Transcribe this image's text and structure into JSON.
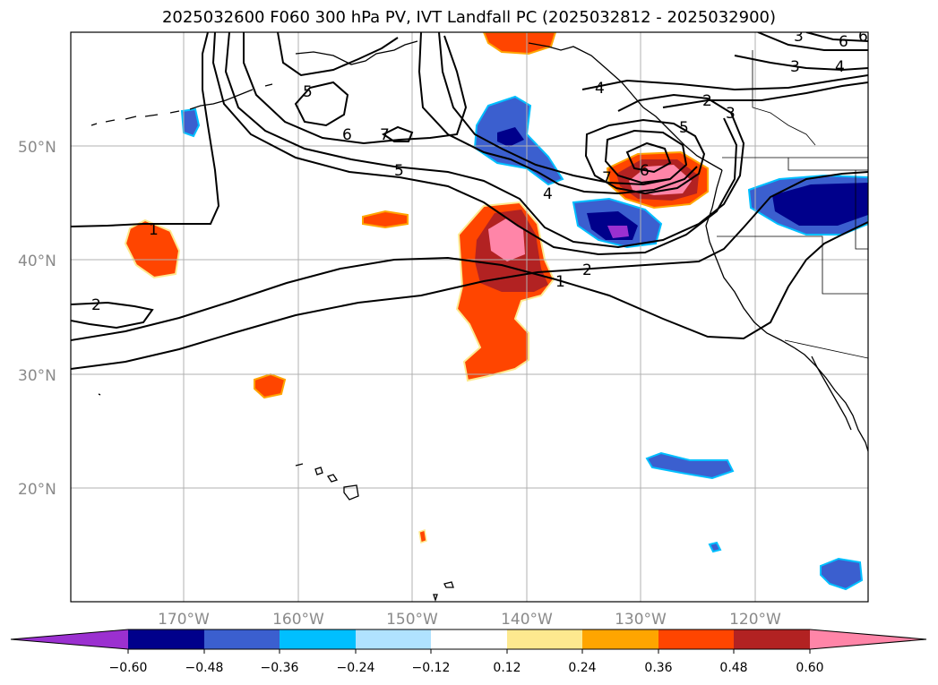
{
  "title": "2025032600 F060 300 hPa PV, IVT Landfall PC (2025032812 - 2025032900)",
  "lat_labels": [
    "50°N",
    "40°N",
    "30°N",
    "20°N"
  ],
  "lon_labels": [
    "170°W",
    "160°W",
    "150°W",
    "140°W",
    "130°W",
    "120°W"
  ],
  "contour_labels": [
    "1",
    "2",
    "2",
    "1",
    "2",
    "3",
    "4",
    "5",
    "6",
    "7",
    "5",
    "6",
    "7",
    "4",
    "5",
    "6",
    "3",
    "4",
    "6",
    "3"
  ],
  "colorbar": {
    "ticks": [
      "−0.60",
      "−0.48",
      "−0.36",
      "−0.24",
      "−0.12",
      "0.12",
      "0.24",
      "0.36",
      "0.48",
      "0.60"
    ],
    "colors": [
      "#9b30d0",
      "#00008b",
      "#3b5fcf",
      "#00bfff",
      "#b0e2ff",
      "#ffffff",
      "#fde98f",
      "#ffa500",
      "#ff4500",
      "#b22222",
      "#ff85a8",
      "#ff85a8"
    ]
  }
}
